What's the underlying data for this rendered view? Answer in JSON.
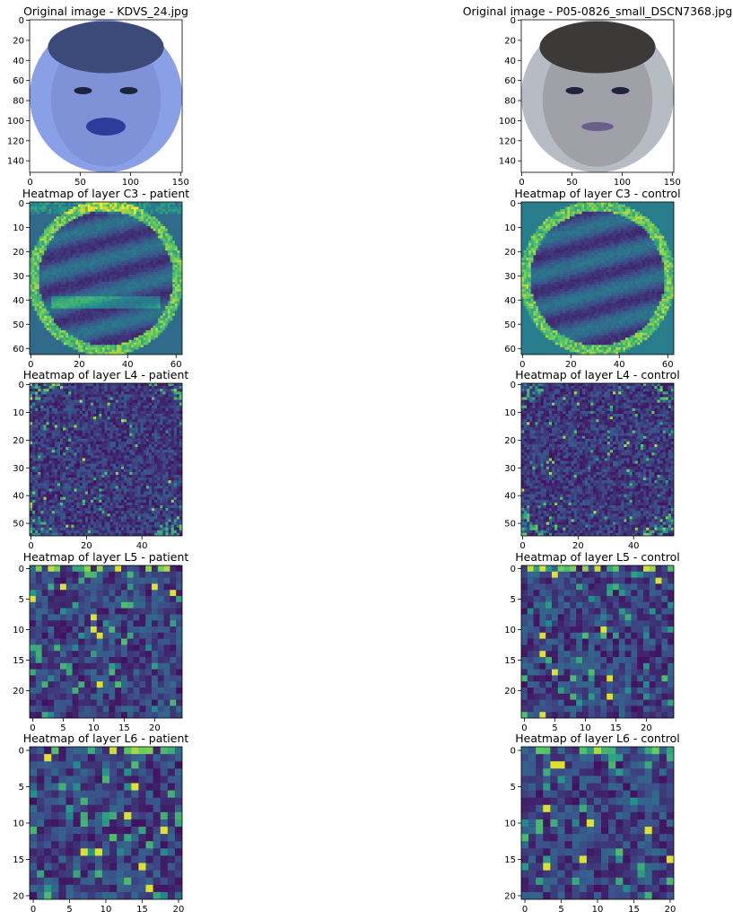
{
  "chart_data": [
    {
      "type": "image",
      "title": "Original image - KDVS_24.jpg",
      "xticks": [
        0,
        50,
        100,
        150
      ],
      "yticks": [
        0,
        20,
        40,
        60,
        80,
        100,
        120,
        140
      ],
      "size": 152,
      "face_tint": "#7f92d8",
      "seed": 3
    },
    {
      "type": "image",
      "title": "Original image - P05-0826_small_DSCN7368.jpg",
      "xticks": [
        0,
        50,
        100,
        150
      ],
      "yticks": [
        0,
        20,
        40,
        60,
        80,
        100,
        120,
        140
      ],
      "size": 152,
      "face_tint": "#9fa0a8",
      "seed": 7
    },
    {
      "type": "heatmap",
      "title": "Heatmap of layer C3 - patient",
      "xticks": [
        0,
        20,
        40,
        60
      ],
      "yticks": [
        0,
        10,
        20,
        30,
        40,
        50,
        60
      ],
      "size": 63,
      "style": "smooth",
      "seed": 11
    },
    {
      "type": "heatmap",
      "title": "Heatmap of layer C3 - control",
      "xticks": [
        0,
        20,
        40,
        60
      ],
      "yticks": [
        0,
        10,
        20,
        30,
        40,
        50,
        60
      ],
      "size": 63,
      "style": "smooth",
      "seed": 12
    },
    {
      "type": "heatmap",
      "title": "Heatmap of layer L4 - patient",
      "xticks": [
        0,
        20,
        40
      ],
      "yticks": [
        0,
        10,
        20,
        30,
        40,
        50
      ],
      "size": 55,
      "style": "noise",
      "seed": 21
    },
    {
      "type": "heatmap",
      "title": "Heatmap of layer L4 - control",
      "xticks": [
        0,
        20,
        40
      ],
      "yticks": [
        0,
        10,
        20,
        30,
        40,
        50
      ],
      "size": 55,
      "style": "noise",
      "seed": 22
    },
    {
      "type": "heatmap",
      "title": "Heatmap of layer L5 - patient",
      "xticks": [
        0,
        5,
        10,
        15,
        20
      ],
      "yticks": [
        0,
        5,
        10,
        15,
        20
      ],
      "size": 25,
      "style": "sparse",
      "seed": 31
    },
    {
      "type": "heatmap",
      "title": "Heatmap of layer L5 - control",
      "xticks": [
        0,
        5,
        10,
        15,
        20
      ],
      "yticks": [
        0,
        5,
        10,
        15,
        20
      ],
      "size": 25,
      "style": "sparse",
      "seed": 32
    },
    {
      "type": "heatmap",
      "title": "Heatmap of layer L6 - patient",
      "xticks": [
        0,
        5,
        10,
        15,
        20
      ],
      "yticks": [
        0,
        5,
        10,
        15,
        20
      ],
      "size": 21,
      "style": "sparse",
      "seed": 41
    },
    {
      "type": "heatmap",
      "title": "Heatmap of layer L6 - control",
      "xticks": [
        0,
        5,
        10,
        15,
        20
      ],
      "yticks": [
        0,
        5,
        10,
        15,
        20
      ],
      "size": 21,
      "style": "sparse",
      "seed": 42
    }
  ]
}
